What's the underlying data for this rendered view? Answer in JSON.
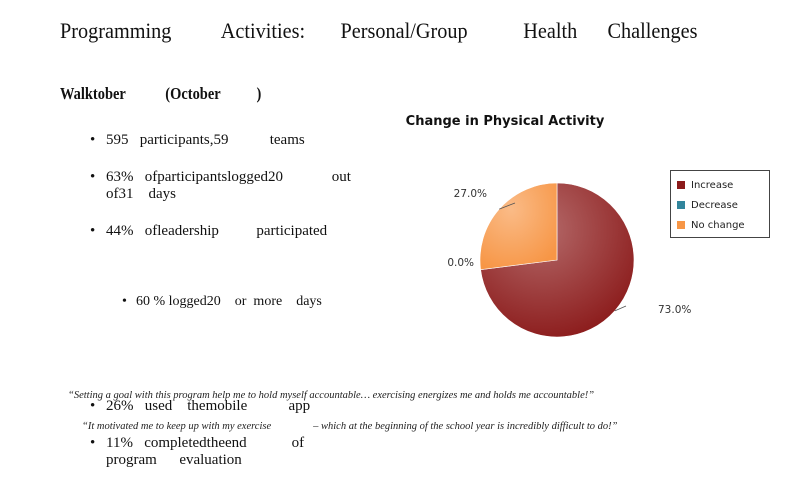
{
  "slide": {
    "title": "Programming          Activities:       Personal/Group           Health      Challenges",
    "subtitle": "Walktober           (October          )",
    "bullets": [
      {
        "text": "595   participants,59           teams"
      },
      {
        "text": "63%   ofparticipantslogged20             out\nof31    days"
      },
      {
        "text": "44%   ofleadership          participated",
        "sub": "60 % logged20    or  more    days"
      },
      {
        "text": "26%   used    themobile           app"
      },
      {
        "text": "11%   completedtheend            of\nprogram      evaluation"
      }
    ],
    "quotes": [
      "“Setting a goal with this program help me to hold myself accountable… exercising energizes me and holds me accountable!”",
      "“It motivated me to keep up with my exercise                – which at the beginning of the school year is incredibly difficult to do!”"
    ]
  },
  "chart_data": {
    "type": "pie",
    "title": "Change in Physical Activity",
    "categories": [
      "Increase",
      "Decrease",
      "No change"
    ],
    "values": [
      73.0,
      0.0,
      27.0
    ],
    "labels": [
      "73.0%",
      "0.0%",
      "27.0%"
    ],
    "colors": [
      "#8B1A1A",
      "#31859C",
      "#F79646"
    ],
    "legend_position": "right"
  }
}
